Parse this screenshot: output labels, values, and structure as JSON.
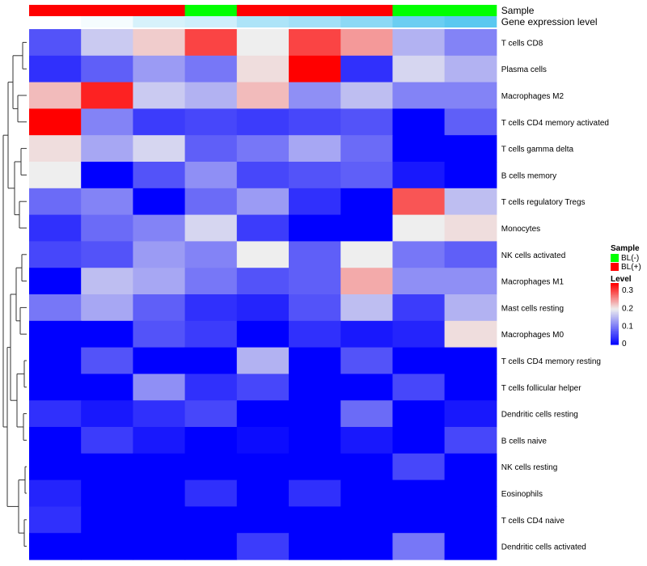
{
  "chart_data": {
    "type": "heatmap",
    "title": "",
    "annotation_tracks": [
      {
        "name": "Sample",
        "values": [
          "BL(+)",
          "BL(+)",
          "BL(+)",
          "BL(-)",
          "BL(+)",
          "BL(+)",
          "BL(+)",
          "BL(-)",
          "BL(-)"
        ],
        "colors": {
          "BL(-)": "#00ff00",
          "BL(+)": "#ff0000"
        }
      },
      {
        "name": "Gene expression level",
        "values": [
          0.0,
          0.03,
          0.12,
          0.15,
          0.25,
          0.28,
          0.35,
          0.45,
          0.5
        ],
        "color_range": [
          "#ffffff",
          "#5ac8f0"
        ]
      }
    ],
    "columns": 9,
    "rows": [
      "T cells CD8",
      "Plasma cells",
      "Macrophages M2",
      "T cells CD4 memory activated",
      "T cells gamma delta",
      "B cells memory",
      "T cells regulatory  Tregs",
      "Monocytes",
      "NK cells activated",
      "Macrophages M1",
      "Mast cells resting",
      "Macrophages M0",
      "T cells CD4 memory resting",
      "T cells follicular helper",
      "Dendritic cells resting",
      "B cells naive",
      "NK cells resting",
      "Eosinophils",
      "T cells CD4 naive",
      "Dendritic cells activated"
    ],
    "values": [
      [
        0.07,
        0.17,
        0.22,
        0.3,
        0.2,
        0.3,
        0.25,
        0.15,
        0.11
      ],
      [
        0.04,
        0.08,
        0.13,
        0.1,
        0.21,
        0.34,
        0.04,
        0.18,
        0.15
      ],
      [
        0.23,
        0.32,
        0.17,
        0.15,
        0.23,
        0.12,
        0.16,
        0.11,
        0.11
      ],
      [
        0.34,
        0.11,
        0.05,
        0.06,
        0.05,
        0.06,
        0.07,
        0.0,
        0.08
      ],
      [
        0.21,
        0.14,
        0.18,
        0.08,
        0.1,
        0.14,
        0.09,
        0.0,
        0.0
      ],
      [
        0.2,
        0.0,
        0.07,
        0.12,
        0.06,
        0.07,
        0.08,
        0.02,
        0.0
      ],
      [
        0.09,
        0.11,
        0.0,
        0.09,
        0.13,
        0.04,
        0.0,
        0.29,
        0.16
      ],
      [
        0.04,
        0.09,
        0.11,
        0.18,
        0.05,
        0.0,
        0.0,
        0.2,
        0.21
      ],
      [
        0.06,
        0.07,
        0.13,
        0.11,
        0.2,
        0.08,
        0.2,
        0.1,
        0.08
      ],
      [
        0.0,
        0.16,
        0.14,
        0.1,
        0.07,
        0.08,
        0.24,
        0.12,
        0.12
      ],
      [
        0.1,
        0.14,
        0.08,
        0.04,
        0.03,
        0.07,
        0.16,
        0.05,
        0.15
      ],
      [
        0.0,
        0.0,
        0.07,
        0.05,
        0.0,
        0.04,
        0.02,
        0.03,
        0.21
      ],
      [
        0.0,
        0.07,
        0.0,
        0.0,
        0.15,
        0.0,
        0.07,
        0.0,
        0.0
      ],
      [
        0.0,
        0.0,
        0.12,
        0.04,
        0.06,
        0.0,
        0.0,
        0.06,
        0.0
      ],
      [
        0.04,
        0.02,
        0.04,
        0.06,
        0.0,
        0.0,
        0.09,
        0.0,
        0.02
      ],
      [
        0.0,
        0.05,
        0.02,
        0.0,
        0.01,
        0.0,
        0.02,
        0.0,
        0.06
      ],
      [
        0.0,
        0.0,
        0.0,
        0.0,
        0.0,
        0.0,
        0.0,
        0.06,
        0.0
      ],
      [
        0.03,
        0.0,
        0.0,
        0.04,
        0.0,
        0.04,
        0.0,
        0.0,
        0.0
      ],
      [
        0.04,
        0.0,
        0.0,
        0.0,
        0.0,
        0.0,
        0.0,
        0.0,
        0.0
      ],
      [
        0.0,
        0.0,
        0.0,
        0.0,
        0.05,
        0.0,
        0.0,
        0.1,
        0.0
      ]
    ],
    "color_scale": {
      "low": "#0000ff",
      "mid": "#eeeeee",
      "high": "#ff0000",
      "domain": [
        0,
        0.2,
        0.34
      ]
    },
    "legend": {
      "placement": "right",
      "sample_title": "Sample",
      "sample_entries": [
        {
          "label": "BL(-)",
          "color": "#00ff00"
        },
        {
          "label": "BL(+)",
          "color": "#ff0000"
        }
      ],
      "level_title": "Level",
      "level_ticks": [
        {
          "label": "0.3",
          "value": 0.3
        },
        {
          "label": "0.2",
          "value": 0.2
        },
        {
          "label": "0.1",
          "value": 0.1
        },
        {
          "label": "0",
          "value": 0
        }
      ]
    },
    "row_dendrogram": true
  }
}
